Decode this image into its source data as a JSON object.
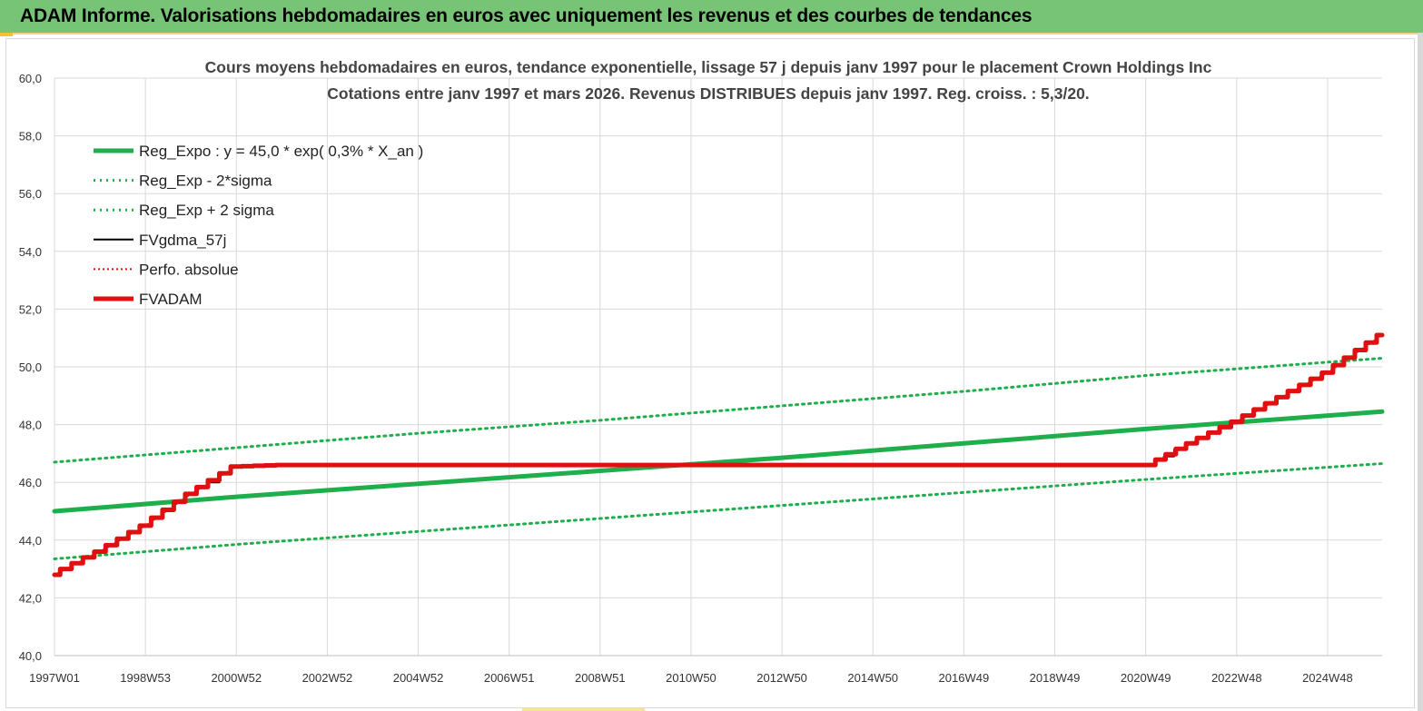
{
  "banner": {
    "title": "ADAM Informe. Valorisations hebdomadaires en euros avec uniquement les revenus et des courbes de tendances"
  },
  "colors": {
    "banner_bg": "#77c476",
    "reg_expo": "#1fae4c",
    "fvgdma": "#000000",
    "fvadam": "#e01010",
    "perfo": "#e01010",
    "grid": "#d9d9d9"
  },
  "chart_data": {
    "type": "line",
    "title": "Cours moyens hebdomadaires en euros, tendance exponentielle, lissage 57 j depuis janv 1997 pour le  placement Crown Holdings Inc",
    "subtitle": "Cotations entre janv 1997 et mars 2026. Revenus DISTRIBUES depuis janv 1997. Reg. croiss. : 5,3/20.",
    "ylim": [
      40,
      60
    ],
    "xlim": [
      1997.0,
      2026.2
    ],
    "grid": true,
    "legend_position": "top-left",
    "y_ticks": [
      "60,0",
      "58,0",
      "56,0",
      "54,0",
      "52,0",
      "50,0",
      "48,0",
      "46,0",
      "44,0",
      "42,0",
      "40,0"
    ],
    "x_ticks": [
      {
        "label": "1997W01",
        "x": 1997.0
      },
      {
        "label": "1998W53",
        "x": 1999.0
      },
      {
        "label": "2000W52",
        "x": 2001.0
      },
      {
        "label": "2002W52",
        "x": 2003.0
      },
      {
        "label": "2004W52",
        "x": 2005.0
      },
      {
        "label": "2006W51",
        "x": 2007.0
      },
      {
        "label": "2008W51",
        "x": 2009.0
      },
      {
        "label": "2010W50",
        "x": 2011.0
      },
      {
        "label": "2012W50",
        "x": 2013.0
      },
      {
        "label": "2014W50",
        "x": 2015.0
      },
      {
        "label": "2016W49",
        "x": 2017.0
      },
      {
        "label": "2018W49",
        "x": 2019.0
      },
      {
        "label": "2020W49",
        "x": 2021.0
      },
      {
        "label": "2022W48",
        "x": 2023.0
      },
      {
        "label": "2024W48",
        "x": 2025.0
      }
    ],
    "series": [
      {
        "name": "Reg_Expo : y = 45,0 * exp( 0,3% *  X_an )",
        "style": "solid-thick",
        "color": "#1fae4c",
        "x": [
          1997.0,
          2001.0,
          2005.0,
          2009.0,
          2013.0,
          2017.0,
          2021.0,
          2026.2
        ],
        "y": [
          45.0,
          45.5,
          45.95,
          46.4,
          46.85,
          47.35,
          47.85,
          48.45
        ]
      },
      {
        "name": "Reg_Exp - 2*sigma",
        "style": "dotted",
        "color": "#1fae4c",
        "x": [
          1997.0,
          2001.0,
          2005.0,
          2009.0,
          2013.0,
          2017.0,
          2021.0,
          2026.2
        ],
        "y": [
          43.35,
          43.85,
          44.3,
          44.75,
          45.2,
          45.65,
          46.1,
          46.65
        ]
      },
      {
        "name": "Reg_Exp + 2 sigma",
        "style": "dotted",
        "color": "#1fae4c",
        "x": [
          1997.0,
          2001.0,
          2005.0,
          2009.0,
          2013.0,
          2017.0,
          2021.0,
          2026.2
        ],
        "y": [
          46.7,
          47.2,
          47.7,
          48.15,
          48.65,
          49.15,
          49.7,
          50.3
        ]
      },
      {
        "name": "FVgdma_57j",
        "style": "solid-thin",
        "color": "#000000",
        "x": [
          1997.0,
          1998.0,
          1999.0,
          1999.5,
          2000.0,
          2000.5,
          2001.0,
          2002.0,
          2010.0,
          2021.1,
          2021.5,
          2022.0,
          2023.0,
          2024.0,
          2025.0,
          2026.2
        ],
        "y": [
          42.8,
          43.6,
          44.5,
          45.0,
          45.6,
          46.0,
          46.55,
          46.6,
          46.6,
          46.6,
          46.9,
          47.35,
          48.1,
          48.95,
          49.8,
          51.1
        ]
      },
      {
        "name": "Perfo. absolue",
        "style": "dotted-red",
        "color": "#e01010",
        "x": [
          1997.0,
          1998.0,
          1999.0,
          2000.0,
          2001.0,
          2002.0,
          2010.0,
          2021.1,
          2022.0,
          2023.0,
          2024.0,
          2025.0,
          2026.2
        ],
        "y": [
          42.8,
          43.6,
          44.5,
          45.6,
          46.55,
          46.6,
          46.6,
          46.6,
          47.35,
          48.1,
          48.95,
          49.8,
          51.1
        ]
      },
      {
        "name": "FVADAM",
        "style": "solid-thick",
        "color": "#e01010",
        "x": [
          1997.0,
          1998.0,
          1999.0,
          2000.0,
          2001.0,
          2002.0,
          2010.0,
          2021.1,
          2022.0,
          2023.0,
          2024.0,
          2025.0,
          2026.2
        ],
        "y": [
          42.8,
          43.6,
          44.5,
          45.6,
          46.55,
          46.6,
          46.6,
          46.6,
          47.35,
          48.1,
          48.95,
          49.8,
          51.1
        ]
      }
    ]
  }
}
